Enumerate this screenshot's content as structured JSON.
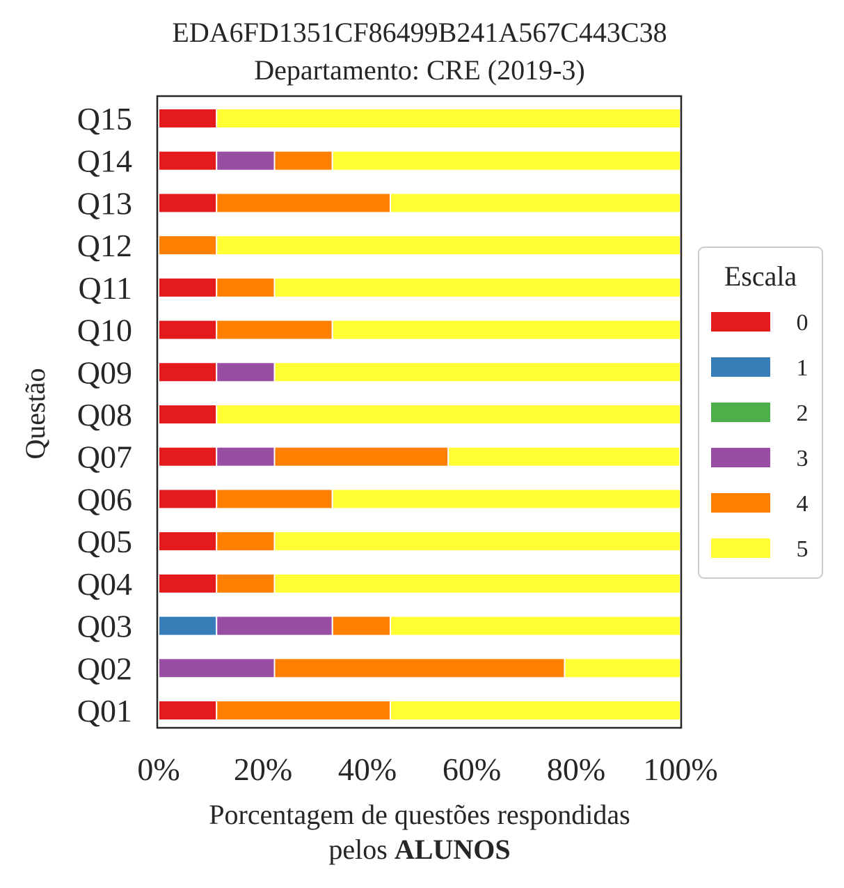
{
  "chart_data": {
    "type": "bar",
    "orientation": "horizontal",
    "stacked": true,
    "title": "EDA6FD1351CF86499B241A567C443C38",
    "subtitle": "Departamento: CRE (2019-3)",
    "xlabel_line1": "Porcentagem de questões respondidas",
    "xlabel_line2_prefix": "pelos ",
    "xlabel_line2_bold": "ALUNOS",
    "ylabel": "Questão",
    "xlim": [
      0,
      100
    ],
    "x_ticks": [
      "0%",
      "20%",
      "40%",
      "60%",
      "80%",
      "100%"
    ],
    "categories": [
      "Q01",
      "Q02",
      "Q03",
      "Q04",
      "Q05",
      "Q06",
      "Q07",
      "Q08",
      "Q09",
      "Q10",
      "Q11",
      "Q12",
      "Q13",
      "Q14",
      "Q15"
    ],
    "series": [
      {
        "name": "0",
        "color": "#e41a1c",
        "values": [
          11.1,
          0,
          0,
          11.1,
          11.1,
          11.1,
          11.1,
          11.1,
          11.1,
          11.1,
          11.1,
          0,
          11.1,
          11.1,
          11.1
        ]
      },
      {
        "name": "1",
        "color": "#377eb8",
        "values": [
          0,
          0,
          11.1,
          0,
          0,
          0,
          0,
          0,
          0,
          0,
          0,
          0,
          0,
          0,
          0
        ]
      },
      {
        "name": "2",
        "color": "#4daf4a",
        "values": [
          0,
          0,
          0,
          0,
          0,
          0,
          0,
          0,
          0,
          0,
          0,
          0,
          0,
          0,
          0
        ]
      },
      {
        "name": "3",
        "color": "#984ea3",
        "values": [
          0,
          22.2,
          22.2,
          0,
          0,
          0,
          11.1,
          0,
          11.1,
          0,
          0,
          0,
          0,
          11.1,
          0
        ]
      },
      {
        "name": "4",
        "color": "#ff7f00",
        "values": [
          33.3,
          55.6,
          11.1,
          11.1,
          11.1,
          22.2,
          33.3,
          0,
          0,
          22.2,
          11.1,
          11.1,
          33.3,
          11.1,
          0
        ]
      },
      {
        "name": "5",
        "color": "#ffff33",
        "values": [
          55.6,
          22.2,
          55.6,
          77.8,
          77.8,
          66.7,
          44.4,
          88.9,
          77.8,
          66.7,
          77.8,
          88.9,
          55.6,
          66.7,
          88.9
        ]
      }
    ],
    "legend": {
      "title": "Escala",
      "placement": "center-right"
    },
    "grid": false
  }
}
